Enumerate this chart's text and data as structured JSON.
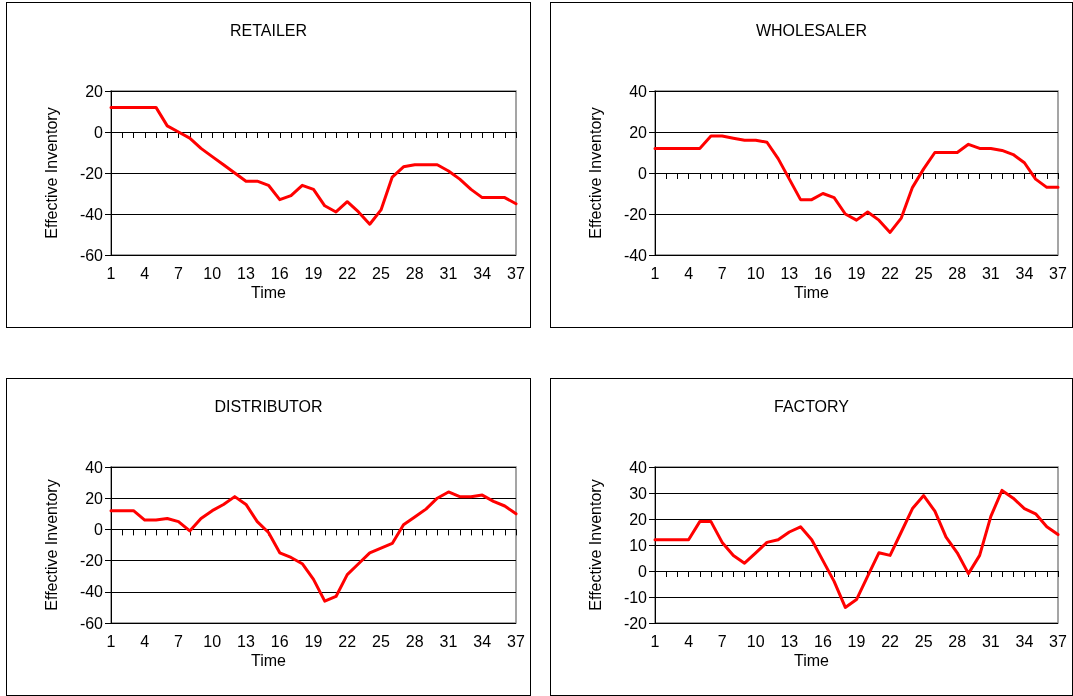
{
  "chart_data": [
    {
      "type": "line",
      "title": "RETAILER",
      "xlabel": "Time",
      "ylabel": "Effective Inventory",
      "categories": [
        "1",
        null,
        null,
        "4",
        null,
        null,
        "7",
        null,
        null,
        "10",
        null,
        null,
        "13",
        null,
        null,
        "16",
        null,
        null,
        "19",
        null,
        null,
        "22",
        null,
        null,
        "25",
        null,
        null,
        "28",
        null,
        null,
        "31",
        null,
        null,
        "34",
        null,
        null,
        "37"
      ],
      "series": [
        {
          "color": "#ff0000",
          "values": [
            12,
            12,
            12,
            12,
            12,
            3,
            0,
            -3,
            -8,
            -12,
            -16,
            -20,
            -24,
            -24,
            -26,
            -33,
            -31,
            -26,
            -28,
            -36,
            -39,
            -34,
            -39,
            -45,
            -38,
            -22,
            -17,
            -16,
            -16,
            -16,
            -19,
            -23,
            -28,
            -32,
            -32,
            -32,
            -35
          ]
        }
      ],
      "ylim": [
        -60,
        20
      ],
      "yticks": [
        -60,
        -40,
        -20,
        0,
        20
      ],
      "grid": "y",
      "marker": "none",
      "line_style": "solid"
    },
    {
      "type": "line",
      "title": "WHOLESALER",
      "xlabel": "Time",
      "ylabel": "Effective Inventory",
      "categories": [
        "1",
        null,
        null,
        "4",
        null,
        null,
        "7",
        null,
        null,
        "10",
        null,
        null,
        "13",
        null,
        null,
        "16",
        null,
        null,
        "19",
        null,
        null,
        "22",
        null,
        null,
        "25",
        null,
        null,
        "28",
        null,
        null,
        "31",
        null,
        null,
        "34",
        null,
        null,
        "37"
      ],
      "series": [
        {
          "color": "#ff0000",
          "values": [
            12,
            12,
            12,
            12,
            12,
            18,
            18,
            17,
            16,
            16,
            15,
            7,
            -3,
            -13,
            -13,
            -10,
            -12,
            -20,
            -23,
            -19,
            -23,
            -29,
            -22,
            -7,
            2,
            10,
            10,
            10,
            14,
            12,
            12,
            11,
            9,
            5,
            -3,
            -7,
            -7
          ]
        }
      ],
      "ylim": [
        -40,
        40
      ],
      "yticks": [
        -40,
        -20,
        0,
        20,
        40
      ],
      "grid": "y",
      "marker": "none",
      "line_style": "solid"
    },
    {
      "type": "line",
      "title": "DISTRIBUTOR",
      "xlabel": "Time",
      "ylabel": "Effective Inventory",
      "categories": [
        "1",
        null,
        null,
        "4",
        null,
        null,
        "7",
        null,
        null,
        "10",
        null,
        null,
        "13",
        null,
        null,
        "16",
        null,
        null,
        "19",
        null,
        null,
        "22",
        null,
        null,
        "25",
        null,
        null,
        "28",
        null,
        null,
        "31",
        null,
        null,
        "34",
        null,
        null,
        "37"
      ],
      "series": [
        {
          "color": "#ff0000",
          "values": [
            12,
            12,
            12,
            6,
            6,
            7,
            5,
            -1,
            7,
            12,
            16,
            21,
            16,
            5,
            -2,
            -15,
            -18,
            -22,
            -32,
            -46,
            -43,
            -29,
            -22,
            -15,
            -12,
            -9,
            3,
            8,
            13,
            20,
            24,
            21,
            21,
            22,
            18,
            15,
            10
          ]
        }
      ],
      "ylim": [
        -60,
        40
      ],
      "yticks": [
        -60,
        -40,
        -20,
        0,
        20,
        40
      ],
      "grid": "y",
      "marker": "none",
      "line_style": "solid"
    },
    {
      "type": "line",
      "title": "FACTORY",
      "xlabel": "Time",
      "ylabel": "Effective Inventory",
      "categories": [
        "1",
        null,
        null,
        "4",
        null,
        null,
        "7",
        null,
        null,
        "10",
        null,
        null,
        "13",
        null,
        null,
        "16",
        null,
        null,
        "19",
        null,
        null,
        "22",
        null,
        null,
        "25",
        null,
        null,
        "28",
        null,
        null,
        "31",
        null,
        null,
        "34",
        null,
        null,
        "37"
      ],
      "series": [
        {
          "color": "#ff0000",
          "values": [
            12,
            12,
            12,
            12,
            19,
            19,
            11,
            6,
            3,
            7,
            11,
            12,
            15,
            17,
            12,
            4,
            -4,
            -14,
            -11,
            -2,
            7,
            6,
            15,
            24,
            29,
            23,
            13,
            7,
            -1,
            6,
            21,
            31,
            28,
            24,
            22,
            17,
            14
          ]
        }
      ],
      "ylim": [
        -20,
        40
      ],
      "yticks": [
        -20,
        -10,
        0,
        10,
        20,
        30,
        40
      ],
      "grid": "y",
      "marker": "none",
      "line_style": "solid"
    }
  ]
}
